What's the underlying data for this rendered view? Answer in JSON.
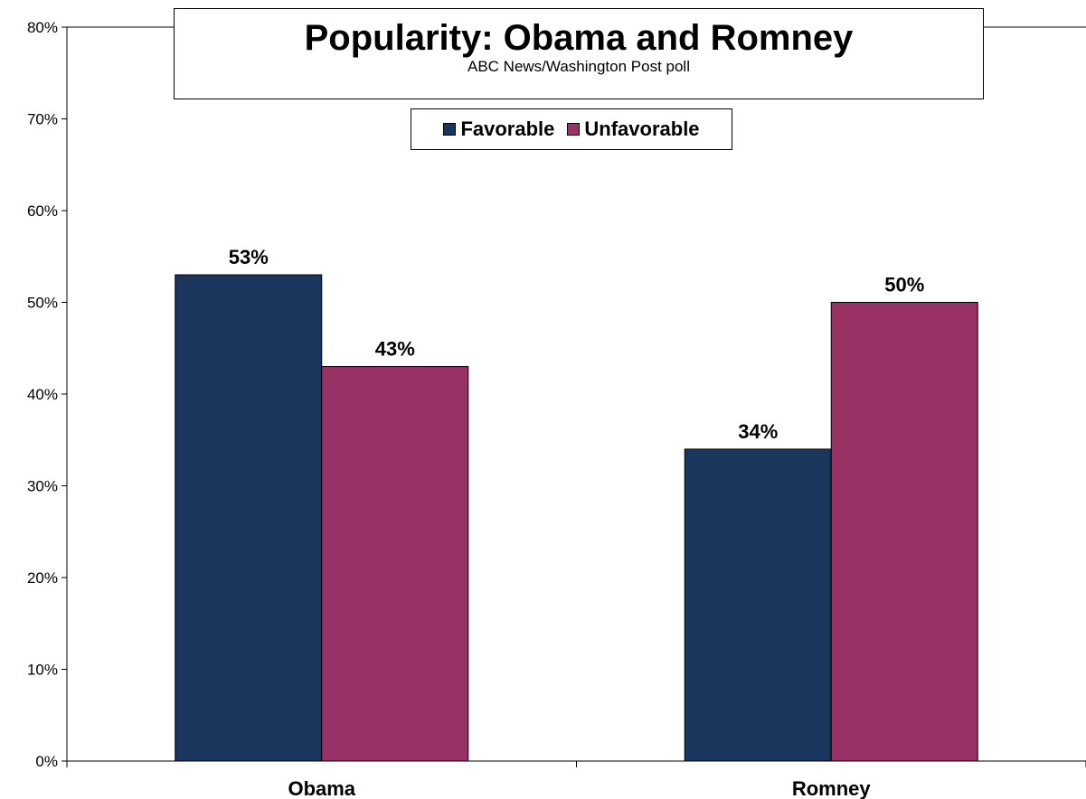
{
  "chart_data": {
    "type": "bar",
    "title": "Popularity: Obama and Romney",
    "subtitle": "ABC News/Washington  Post poll",
    "categories": [
      "Obama",
      "Romney"
    ],
    "series": [
      {
        "name": "Favorable",
        "values": [
          53,
          34
        ],
        "color": "#1b365d"
      },
      {
        "name": "Unfavorable",
        "values": [
          43,
          50
        ],
        "color": "#993366"
      }
    ],
    "data_labels": [
      [
        "53%",
        "34%"
      ],
      [
        "43%",
        "50%"
      ]
    ],
    "yticks": [
      "0%",
      "10%",
      "20%",
      "30%",
      "40%",
      "50%",
      "60%",
      "70%",
      "80%"
    ],
    "ylim": [
      0,
      80
    ],
    "grid": false,
    "legend_position": "top"
  }
}
